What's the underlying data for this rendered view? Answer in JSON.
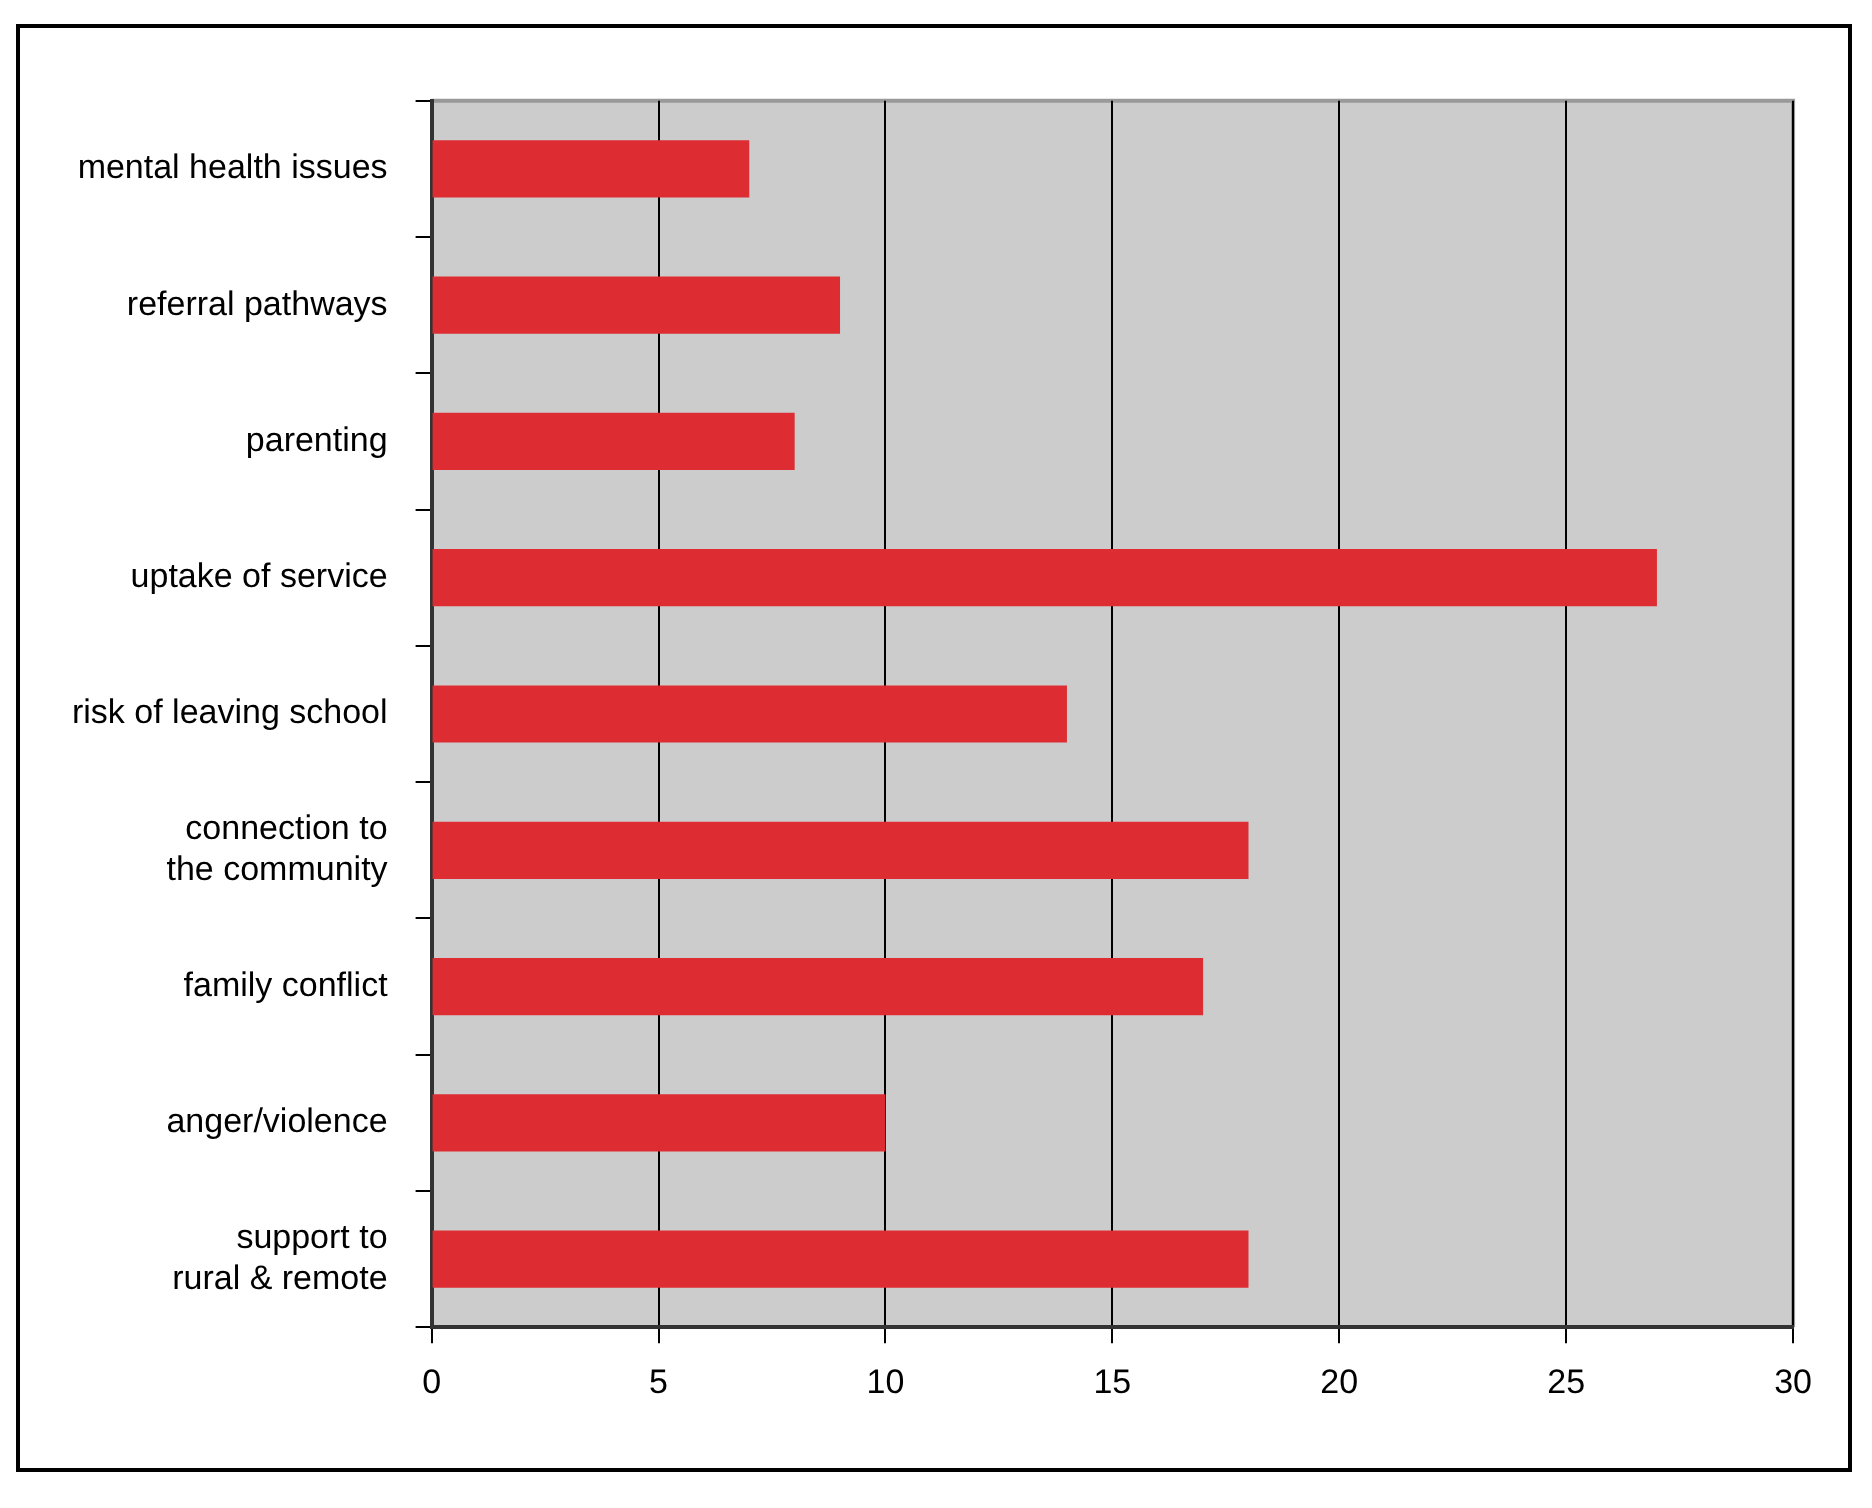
{
  "chart_data": {
    "type": "bar",
    "orientation": "horizontal",
    "categories": [
      "mental health issues",
      "referral pathways",
      "parenting",
      "uptake of service",
      "risk of leaving school",
      "connection to the community",
      "family conflict",
      "anger/violence",
      "support to rural & remote"
    ],
    "values": [
      7,
      9,
      8,
      27,
      14,
      18,
      17,
      10,
      18
    ],
    "color": "#de2c33",
    "xlim": [
      0,
      30
    ],
    "xticks": [
      0,
      5,
      10,
      15,
      20,
      25,
      30
    ],
    "grid": "x",
    "legend": false
  }
}
